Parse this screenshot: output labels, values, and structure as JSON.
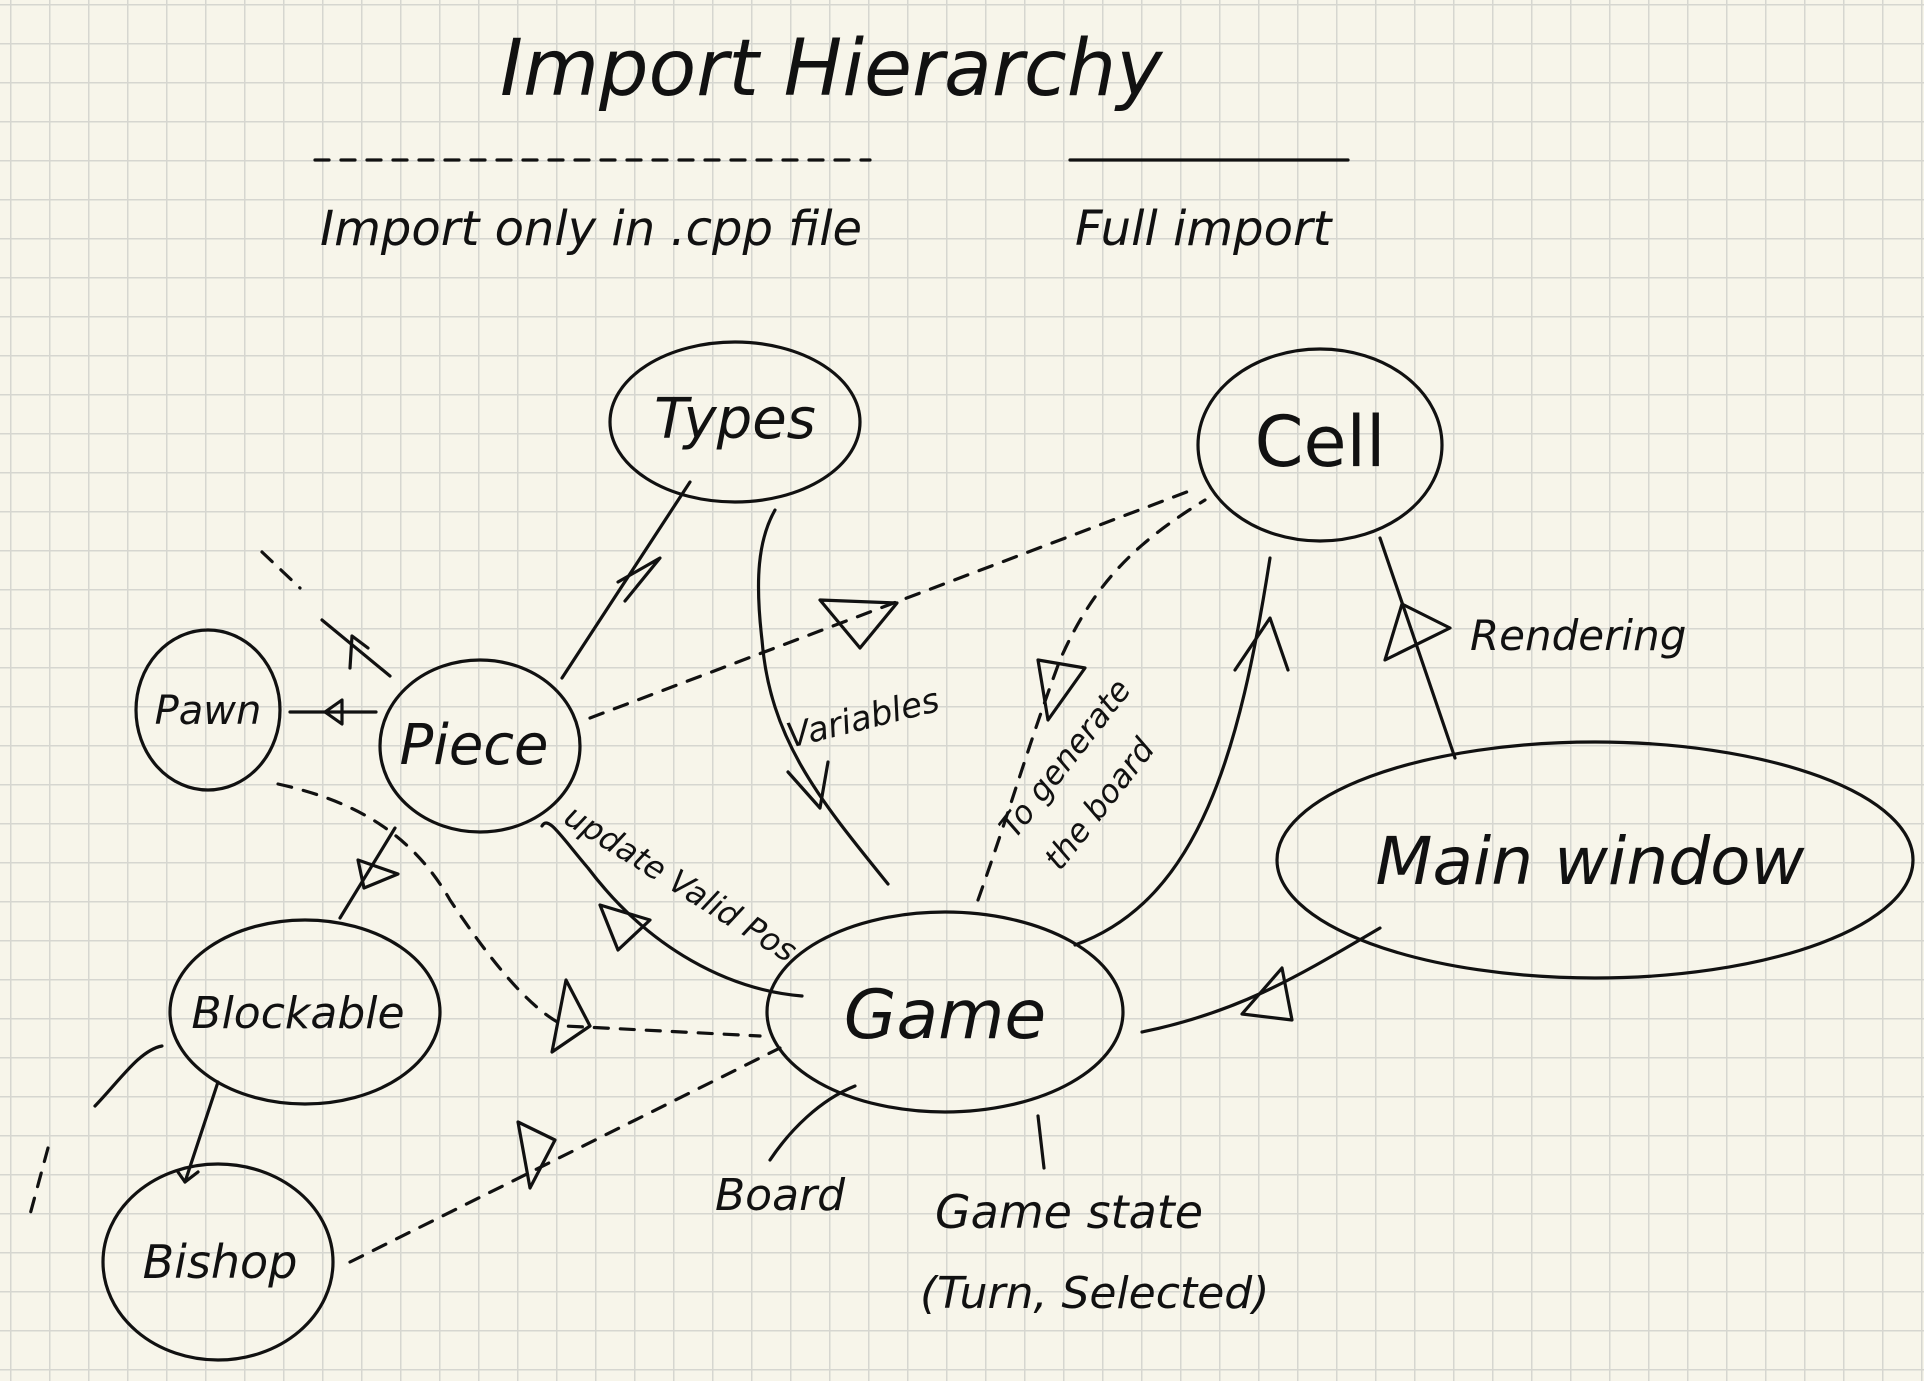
{
  "title": "Import Hierarchy",
  "legend": {
    "dashed_label": "Import only in .cpp file",
    "solid_label": "Full import"
  },
  "nodes": {
    "types": "Types",
    "cell": "Cell",
    "pawn": "Pawn",
    "piece": "Piece",
    "blockable": "Blockable",
    "bishop": "Bishop",
    "game": "Game",
    "main_window": "Main window"
  },
  "edge_labels": {
    "variables": "Variables",
    "generate_board_line1": "To generate",
    "generate_board_line2": "the board",
    "rendering": "Rendering",
    "update_valid_pos": "update Valid Pos"
  },
  "annotations": {
    "board": "Board",
    "game_state_line1": "Game state",
    "game_state_line2": "(Turn, Selected)"
  }
}
